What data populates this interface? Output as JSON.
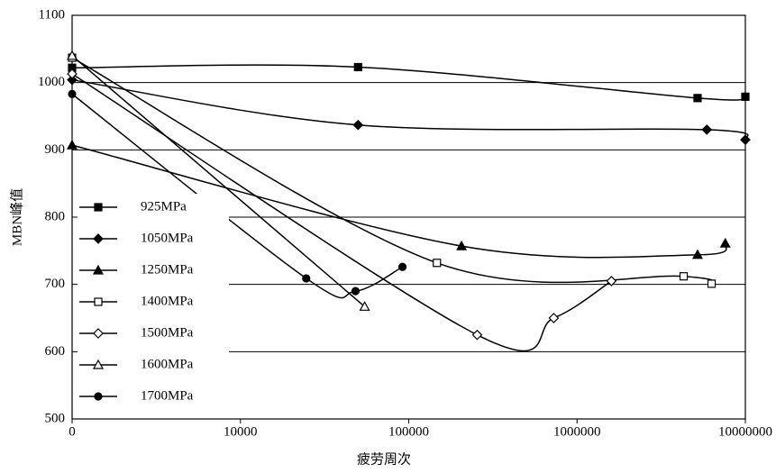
{
  "chart_data": {
    "type": "line",
    "xlabel": "疲劳周次",
    "ylabel": "MBN峰值",
    "xscale": "log",
    "xlim": [
      1000,
      10000000
    ],
    "xticks": [
      {
        "value": 1000,
        "label": "0"
      },
      10000,
      100000,
      1000000,
      10000000
    ],
    "ylim": [
      500,
      1100
    ],
    "yticks": [
      500,
      600,
      700,
      800,
      900,
      1000,
      1100
    ],
    "grid": true,
    "legend": "left",
    "series": [
      {
        "name": "925MPa",
        "color": "#000000",
        "marker": "square",
        "filled": true,
        "x": [
          1000,
          50000,
          5200000,
          10000000
        ],
        "values": [
          1022,
          1023,
          977,
          979
        ]
      },
      {
        "name": "1050MPa",
        "color": "#000000",
        "marker": "diamond",
        "filled": true,
        "x": [
          1000,
          50000,
          5900000,
          10000000
        ],
        "values": [
          1004,
          937,
          930,
          915
        ]
      },
      {
        "name": "1250MPa",
        "color": "#000000",
        "marker": "triangle",
        "filled": true,
        "x": [
          1000,
          206000,
          5200000,
          7600000
        ],
        "values": [
          907,
          757,
          744,
          761
        ]
      },
      {
        "name": "1400MPa",
        "color": "#000000",
        "marker": "square",
        "filled": false,
        "x": [
          1000,
          147000,
          4300000,
          6300000
        ],
        "values": [
          1037,
          732,
          712,
          701
        ]
      },
      {
        "name": "1500MPa",
        "color": "#000000",
        "marker": "diamond",
        "filled": false,
        "x": [
          1000,
          255000,
          727000,
          1600000
        ],
        "values": [
          1013,
          625,
          650,
          705
        ]
      },
      {
        "name": "1600MPa",
        "color": "#000000",
        "marker": "triangle",
        "filled": false,
        "x": [
          1000,
          54700
        ],
        "values": [
          1040,
          667
        ]
      },
      {
        "name": "1700MPa",
        "color": "#000000",
        "marker": "circle",
        "filled": true,
        "x": [
          1000,
          24600,
          48300,
          91800
        ],
        "values": [
          983,
          709,
          690,
          726
        ]
      }
    ]
  }
}
